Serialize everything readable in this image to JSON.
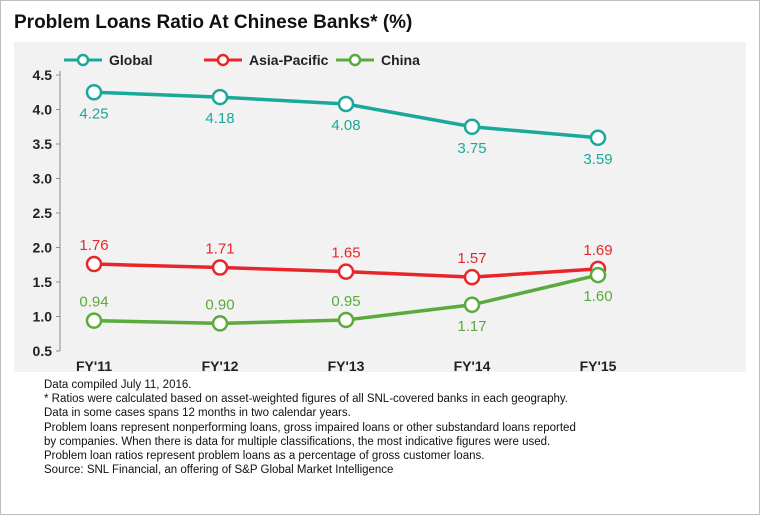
{
  "title": "Problem Loans Ratio At Chinese Banks* (%)",
  "chart_data": {
    "type": "line",
    "categories": [
      "FY'11",
      "FY'12",
      "FY'13",
      "FY'14",
      "FY'15"
    ],
    "ylim": [
      0.5,
      4.5
    ],
    "yticks": [
      "0.5",
      "1.0",
      "1.5",
      "2.0",
      "2.5",
      "3.0",
      "3.5",
      "4.0",
      "4.5"
    ],
    "grid": false,
    "legend_position": "top-left",
    "series": [
      {
        "name": "Global",
        "color": "#1aa89a",
        "values": [
          4.25,
          4.18,
          4.08,
          3.75,
          3.59
        ],
        "labels": [
          "4.25",
          "4.18",
          "4.08",
          "3.75",
          "3.59"
        ],
        "label_position": [
          "below",
          "below",
          "below",
          "below",
          "below"
        ]
      },
      {
        "name": "Asia-Pacific",
        "color": "#e8262a",
        "values": [
          1.76,
          1.71,
          1.65,
          1.57,
          1.69
        ],
        "labels": [
          "1.76",
          "1.71",
          "1.65",
          "1.57",
          "1.69"
        ],
        "label_position": [
          "above",
          "above",
          "above",
          "above",
          "above"
        ]
      },
      {
        "name": "China",
        "color": "#5aaa3c",
        "values": [
          0.94,
          0.9,
          0.95,
          1.17,
          1.6
        ],
        "labels": [
          "0.94",
          "0.90",
          "0.95",
          "1.17",
          "1.60"
        ],
        "label_position": [
          "above",
          "above",
          "above",
          "below",
          "below"
        ]
      }
    ]
  },
  "notes": [
    "Data compiled July 11, 2016.",
    "* Ratios were calculated based on asset-weighted figures of all SNL-covered banks in each geography.",
    "Data in some cases spans 12 months in two calendar years.",
    "Problem loans represent nonperforming loans, gross impaired loans or other substandard loans reported",
    "by companies. When there is data for multiple classifications, the most indicative figures were used.",
    "Problem loan ratios represent problem loans as a percentage of gross customer loans.",
    "Source: SNL Financial, an offering of S&P Global Market Intelligence"
  ]
}
